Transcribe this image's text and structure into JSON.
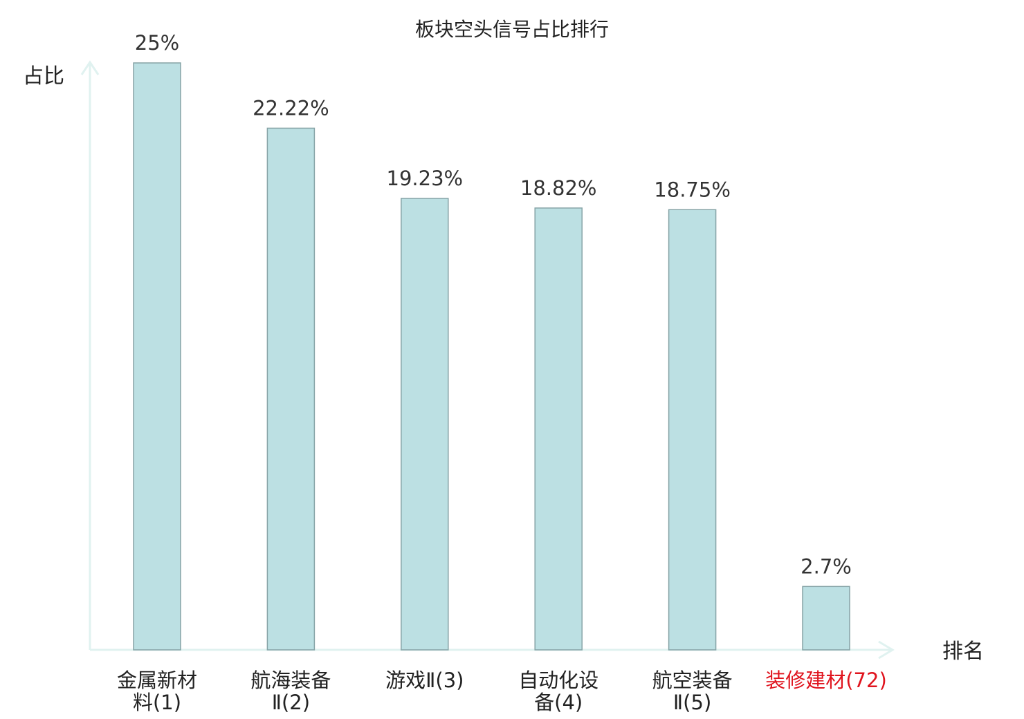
{
  "chart_data": {
    "type": "bar",
    "title": "板块空头信号占比排行",
    "ylabel": "占比",
    "xlabel": "排名",
    "ylim": [
      0,
      26
    ],
    "grid": false,
    "categories": [
      [
        "金属新材",
        "料(1)"
      ],
      [
        "航海装备",
        "Ⅱ(2)"
      ],
      [
        "游戏Ⅱ(3)"
      ],
      [
        "自动化设",
        "备(4)"
      ],
      [
        "航空装备",
        "Ⅱ(5)"
      ],
      [
        "装修建材(72)"
      ]
    ],
    "values": [
      25,
      22.22,
      19.23,
      18.82,
      18.75,
      2.7
    ],
    "value_labels": [
      "25%",
      "22.22%",
      "19.23%",
      "18.82%",
      "18.75%",
      "2.7%"
    ],
    "highlighted_category_index": 5,
    "colors": {
      "bar_fill": "#bce0e3",
      "bar_stroke": "#86a3a6",
      "axis": "#e0f2f0",
      "text": "#222222",
      "label_text": "#333333",
      "highlight": "#e0141e"
    }
  }
}
